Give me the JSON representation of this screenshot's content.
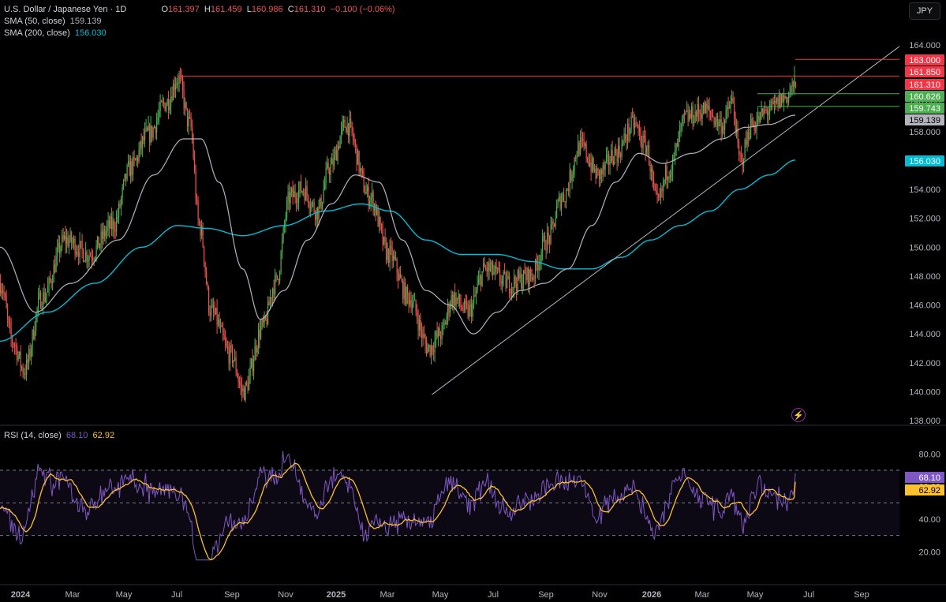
{
  "legend": {
    "symbol": "U.S. Dollar / Japanese Yen · 1D",
    "o_label": "O",
    "o_value": "161.397",
    "h_label": "H",
    "h_value": "161.459",
    "l_label": "L",
    "l_value": "160.986",
    "c_label": "C",
    "c_value": "161.310",
    "change": "−0.100 (−0.06%)",
    "sma50_label": "SMA (50, close)",
    "sma50_value": "159.139",
    "sma200_label": "SMA (200, close)",
    "sma200_value": "156.030",
    "rsi_label": "RSI (14, close)",
    "rsi_value": "68.10",
    "rsi_ma_value": "62.92"
  },
  "currency_button": "JPY",
  "colors": {
    "up": "#26a69a",
    "up_bright": "#4caf50",
    "down": "#ef5350",
    "sma50": "#b2b5be",
    "sma200": "#00bcd4",
    "rsi": "#7e57c2",
    "rsi_ma": "#fbc02d",
    "hline_red": "#f23645",
    "hline_green": "#4caf50",
    "trendline": "#b2b5be"
  },
  "price_labels": [
    {
      "value": "163.000",
      "color": "#f23645"
    },
    {
      "value": "161.850",
      "color": "#f23645"
    },
    {
      "value": "161.310",
      "color": "#f23645"
    },
    {
      "value": "160.626",
      "color": "#4caf50"
    },
    {
      "value": "159.743",
      "color": "#4caf50"
    },
    {
      "value": "159.139",
      "color": "#b2b5be"
    },
    {
      "value": "156.030",
      "color": "#00bcd4"
    }
  ],
  "chart_data": {
    "type": "candlestick",
    "title": "U.S. Dollar / Japanese Yen · 1D",
    "ylim": [
      138,
      165
    ],
    "y_ticks": [
      "164.000",
      "162.000",
      "160.000",
      "158.000",
      "156.000",
      "154.000",
      "152.000",
      "150.000",
      "148.000",
      "146.000",
      "144.000",
      "142.000",
      "140.000",
      "138.000"
    ],
    "x_ticks": [
      "2024",
      "Mar",
      "May",
      "Jul",
      "Sep",
      "Nov",
      "2025",
      "Mar",
      "May",
      "Jul",
      "Sep",
      "Nov",
      "2026",
      "Mar",
      "May",
      "Jul",
      "Sep"
    ],
    "price_anchors": [
      {
        "t": 0,
        "v": 147.5
      },
      {
        "t": 10,
        "v": 143.5
      },
      {
        "t": 20,
        "v": 141.5
      },
      {
        "t": 35,
        "v": 146.5
      },
      {
        "t": 55,
        "v": 150.5
      },
      {
        "t": 75,
        "v": 149.5
      },
      {
        "t": 95,
        "v": 151.5
      },
      {
        "t": 110,
        "v": 155.5
      },
      {
        "t": 125,
        "v": 157.8
      },
      {
        "t": 140,
        "v": 160.0
      },
      {
        "t": 150,
        "v": 161.7
      },
      {
        "t": 160,
        "v": 158.5
      },
      {
        "t": 168,
        "v": 151.5
      },
      {
        "t": 178,
        "v": 145.5
      },
      {
        "t": 195,
        "v": 142.5
      },
      {
        "t": 205,
        "v": 140.0
      },
      {
        "t": 222,
        "v": 144.5
      },
      {
        "t": 232,
        "v": 147.5
      },
      {
        "t": 245,
        "v": 153.5
      },
      {
        "t": 255,
        "v": 154.0
      },
      {
        "t": 268,
        "v": 152.5
      },
      {
        "t": 278,
        "v": 155.5
      },
      {
        "t": 292,
        "v": 158.5
      },
      {
        "t": 312,
        "v": 153.5
      },
      {
        "t": 328,
        "v": 149.5
      },
      {
        "t": 345,
        "v": 146.5
      },
      {
        "t": 362,
        "v": 143.0
      },
      {
        "t": 372,
        "v": 144.0
      },
      {
        "t": 382,
        "v": 146.5
      },
      {
        "t": 395,
        "v": 145.5
      },
      {
        "t": 410,
        "v": 148.5
      },
      {
        "t": 430,
        "v": 147.5
      },
      {
        "t": 448,
        "v": 148.0
      },
      {
        "t": 462,
        "v": 150.5
      },
      {
        "t": 475,
        "v": 153.5
      },
      {
        "t": 490,
        "v": 157.0
      },
      {
        "t": 505,
        "v": 155.0
      },
      {
        "t": 520,
        "v": 156.5
      },
      {
        "t": 535,
        "v": 158.5
      },
      {
        "t": 545,
        "v": 157.0
      },
      {
        "t": 555,
        "v": 153.0
      },
      {
        "t": 565,
        "v": 155.5
      },
      {
        "t": 580,
        "v": 159.0
      },
      {
        "t": 595,
        "v": 159.5
      },
      {
        "t": 610,
        "v": 158.5
      },
      {
        "t": 618,
        "v": 160.0
      },
      {
        "t": 625,
        "v": 156.0
      },
      {
        "t": 635,
        "v": 158.5
      },
      {
        "t": 650,
        "v": 159.5
      },
      {
        "t": 662,
        "v": 160.3
      },
      {
        "t": 672,
        "v": 161.31
      }
    ],
    "sma50_anchors": [
      {
        "t": 0,
        "v": 150.0
      },
      {
        "t": 30,
        "v": 145.5
      },
      {
        "t": 60,
        "v": 147.5
      },
      {
        "t": 100,
        "v": 150.5
      },
      {
        "t": 130,
        "v": 155.0
      },
      {
        "t": 155,
        "v": 157.5
      },
      {
        "t": 170,
        "v": 157.5
      },
      {
        "t": 185,
        "v": 154.5
      },
      {
        "t": 205,
        "v": 148.5
      },
      {
        "t": 220,
        "v": 145.0
      },
      {
        "t": 240,
        "v": 147.0
      },
      {
        "t": 260,
        "v": 150.5
      },
      {
        "t": 280,
        "v": 153.0
      },
      {
        "t": 300,
        "v": 155.0
      },
      {
        "t": 320,
        "v": 154.5
      },
      {
        "t": 340,
        "v": 150.5
      },
      {
        "t": 360,
        "v": 147.0
      },
      {
        "t": 380,
        "v": 146.0
      },
      {
        "t": 400,
        "v": 144.0
      },
      {
        "t": 420,
        "v": 145.5
      },
      {
        "t": 440,
        "v": 147.0
      },
      {
        "t": 460,
        "v": 147.5
      },
      {
        "t": 480,
        "v": 148.5
      },
      {
        "t": 500,
        "v": 151.5
      },
      {
        "t": 520,
        "v": 154.5
      },
      {
        "t": 540,
        "v": 156.5
      },
      {
        "t": 560,
        "v": 155.8
      },
      {
        "t": 585,
        "v": 156.5
      },
      {
        "t": 610,
        "v": 157.5
      },
      {
        "t": 630,
        "v": 158.3
      },
      {
        "t": 650,
        "v": 158.5
      },
      {
        "t": 672,
        "v": 159.139
      }
    ],
    "sma200_anchors": [
      {
        "t": 0,
        "v": 143.5
      },
      {
        "t": 40,
        "v": 145.5
      },
      {
        "t": 80,
        "v": 147.5
      },
      {
        "t": 120,
        "v": 150.0
      },
      {
        "t": 150,
        "v": 151.5
      },
      {
        "t": 175,
        "v": 151.3
      },
      {
        "t": 205,
        "v": 150.8
      },
      {
        "t": 240,
        "v": 151.5
      },
      {
        "t": 275,
        "v": 152.5
      },
      {
        "t": 305,
        "v": 153.0
      },
      {
        "t": 330,
        "v": 152.5
      },
      {
        "t": 360,
        "v": 150.5
      },
      {
        "t": 390,
        "v": 149.5
      },
      {
        "t": 420,
        "v": 149.5
      },
      {
        "t": 450,
        "v": 149.0
      },
      {
        "t": 475,
        "v": 148.5
      },
      {
        "t": 500,
        "v": 148.5
      },
      {
        "t": 525,
        "v": 149.3
      },
      {
        "t": 550,
        "v": 150.5
      },
      {
        "t": 575,
        "v": 151.5
      },
      {
        "t": 600,
        "v": 152.5
      },
      {
        "t": 625,
        "v": 154.0
      },
      {
        "t": 650,
        "v": 155.0
      },
      {
        "t": 672,
        "v": 156.03
      }
    ],
    "trendline": [
      {
        "t": 365,
        "v": 139.8
      },
      {
        "t": 760,
        "v": 163.9
      }
    ],
    "hlines": [
      {
        "value": 161.85,
        "t_start": 150,
        "t_end": 760,
        "color": "#f23645"
      },
      {
        "value": 163.0,
        "t_start": 672,
        "t_end": 760,
        "color": "#f23645"
      },
      {
        "value": 160.626,
        "t_start": 640,
        "t_end": 760,
        "color": "#4caf50"
      },
      {
        "value": 159.743,
        "t_start": 640,
        "t_end": 760,
        "color": "#4caf50"
      }
    ],
    "rsi": {
      "ylim": [
        10,
        90
      ],
      "y_ticks": [
        "80.00",
        "60.00",
        "40.00",
        "20.00"
      ],
      "upper": 70,
      "middle": 50,
      "lower": 30,
      "last": 68.1,
      "ma_last": 62.92
    }
  }
}
